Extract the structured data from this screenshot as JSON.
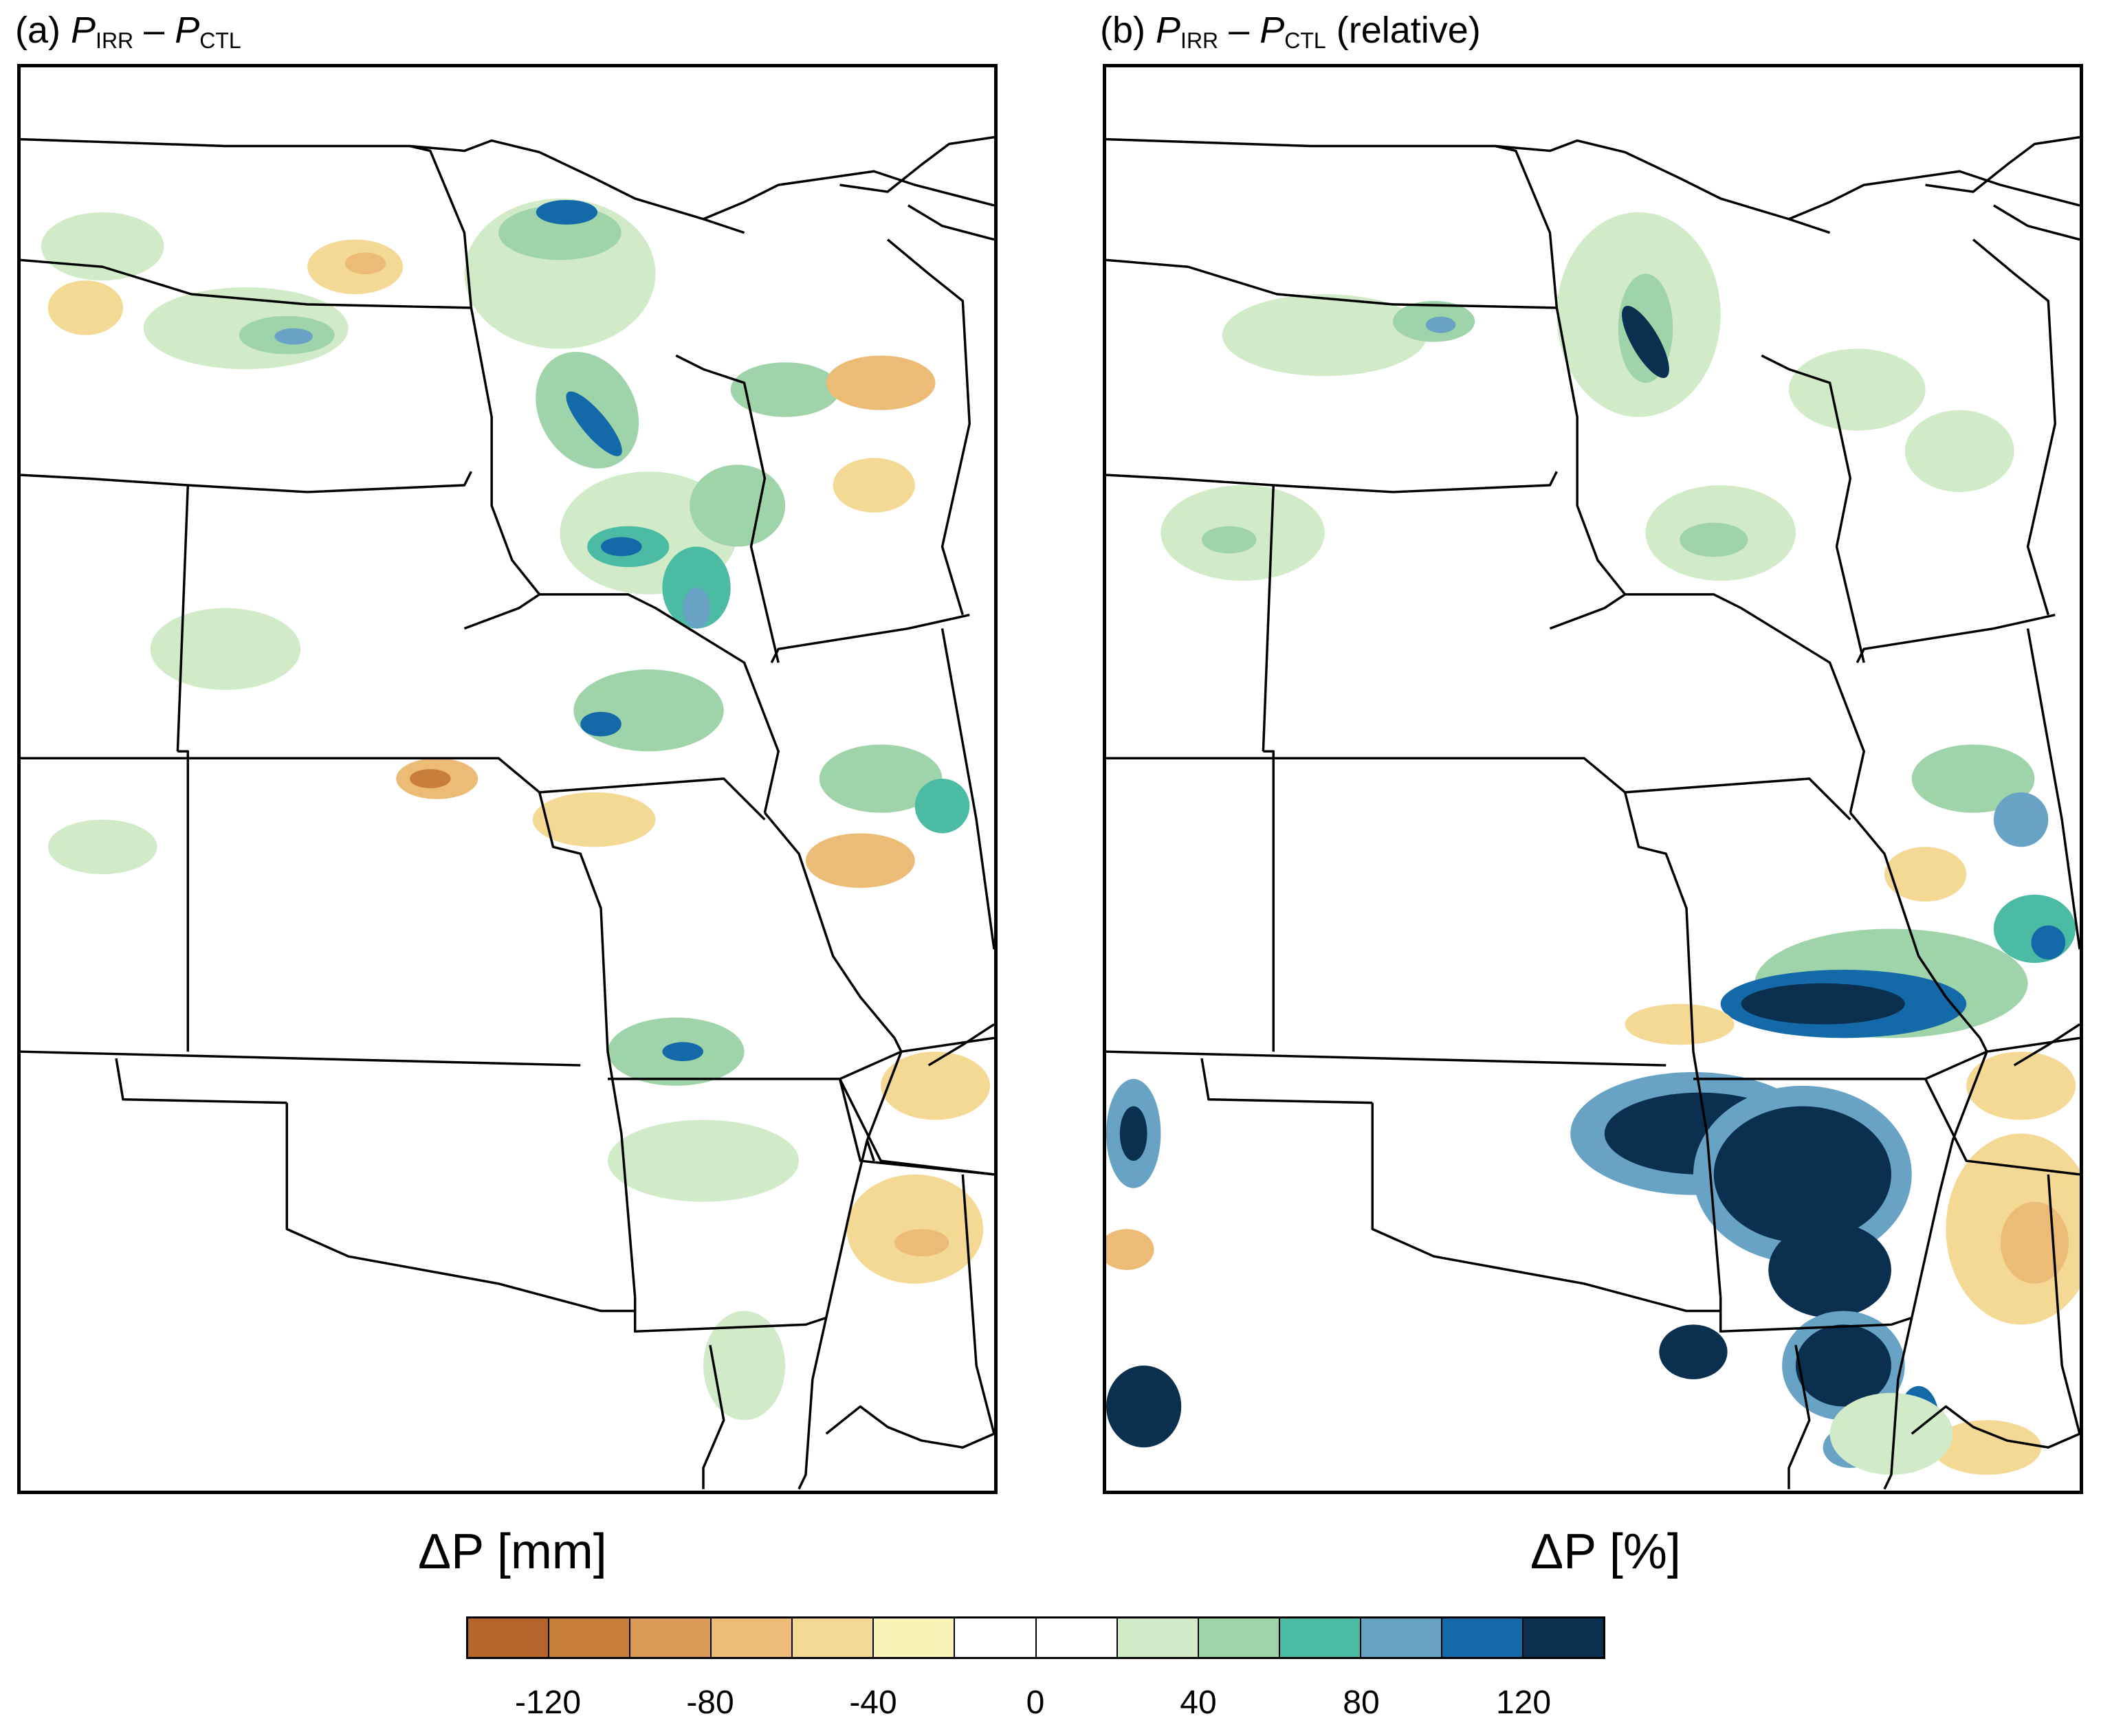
{
  "panel_a": {
    "label": "(a)",
    "p1": "P",
    "sub1": "IRR",
    "minus": "–",
    "p2": "P",
    "sub2": "CTL",
    "suffix": "",
    "unit": "ΔP [mm]"
  },
  "panel_b": {
    "label": "(b)",
    "p1": "P",
    "sub1": "IRR",
    "minus": "–",
    "p2": "P",
    "sub2": "CTL",
    "suffix": "(relative)",
    "unit": "ΔP [%]"
  },
  "colorbar": {
    "colors": [
      "#b5652a",
      "#c77e3b",
      "#d99a58",
      "#ecbc77",
      "#f4d995",
      "#fbf2b8",
      "#ffffff",
      "#ffffff",
      "#d1ebc8",
      "#9fd3a9",
      "#4bbba3",
      "#68a3c5",
      "#1469a8",
      "#0b2f4e"
    ],
    "tick_labels": [
      "-120",
      "-80",
      "-40",
      "0",
      "40",
      "80",
      "120"
    ]
  }
}
